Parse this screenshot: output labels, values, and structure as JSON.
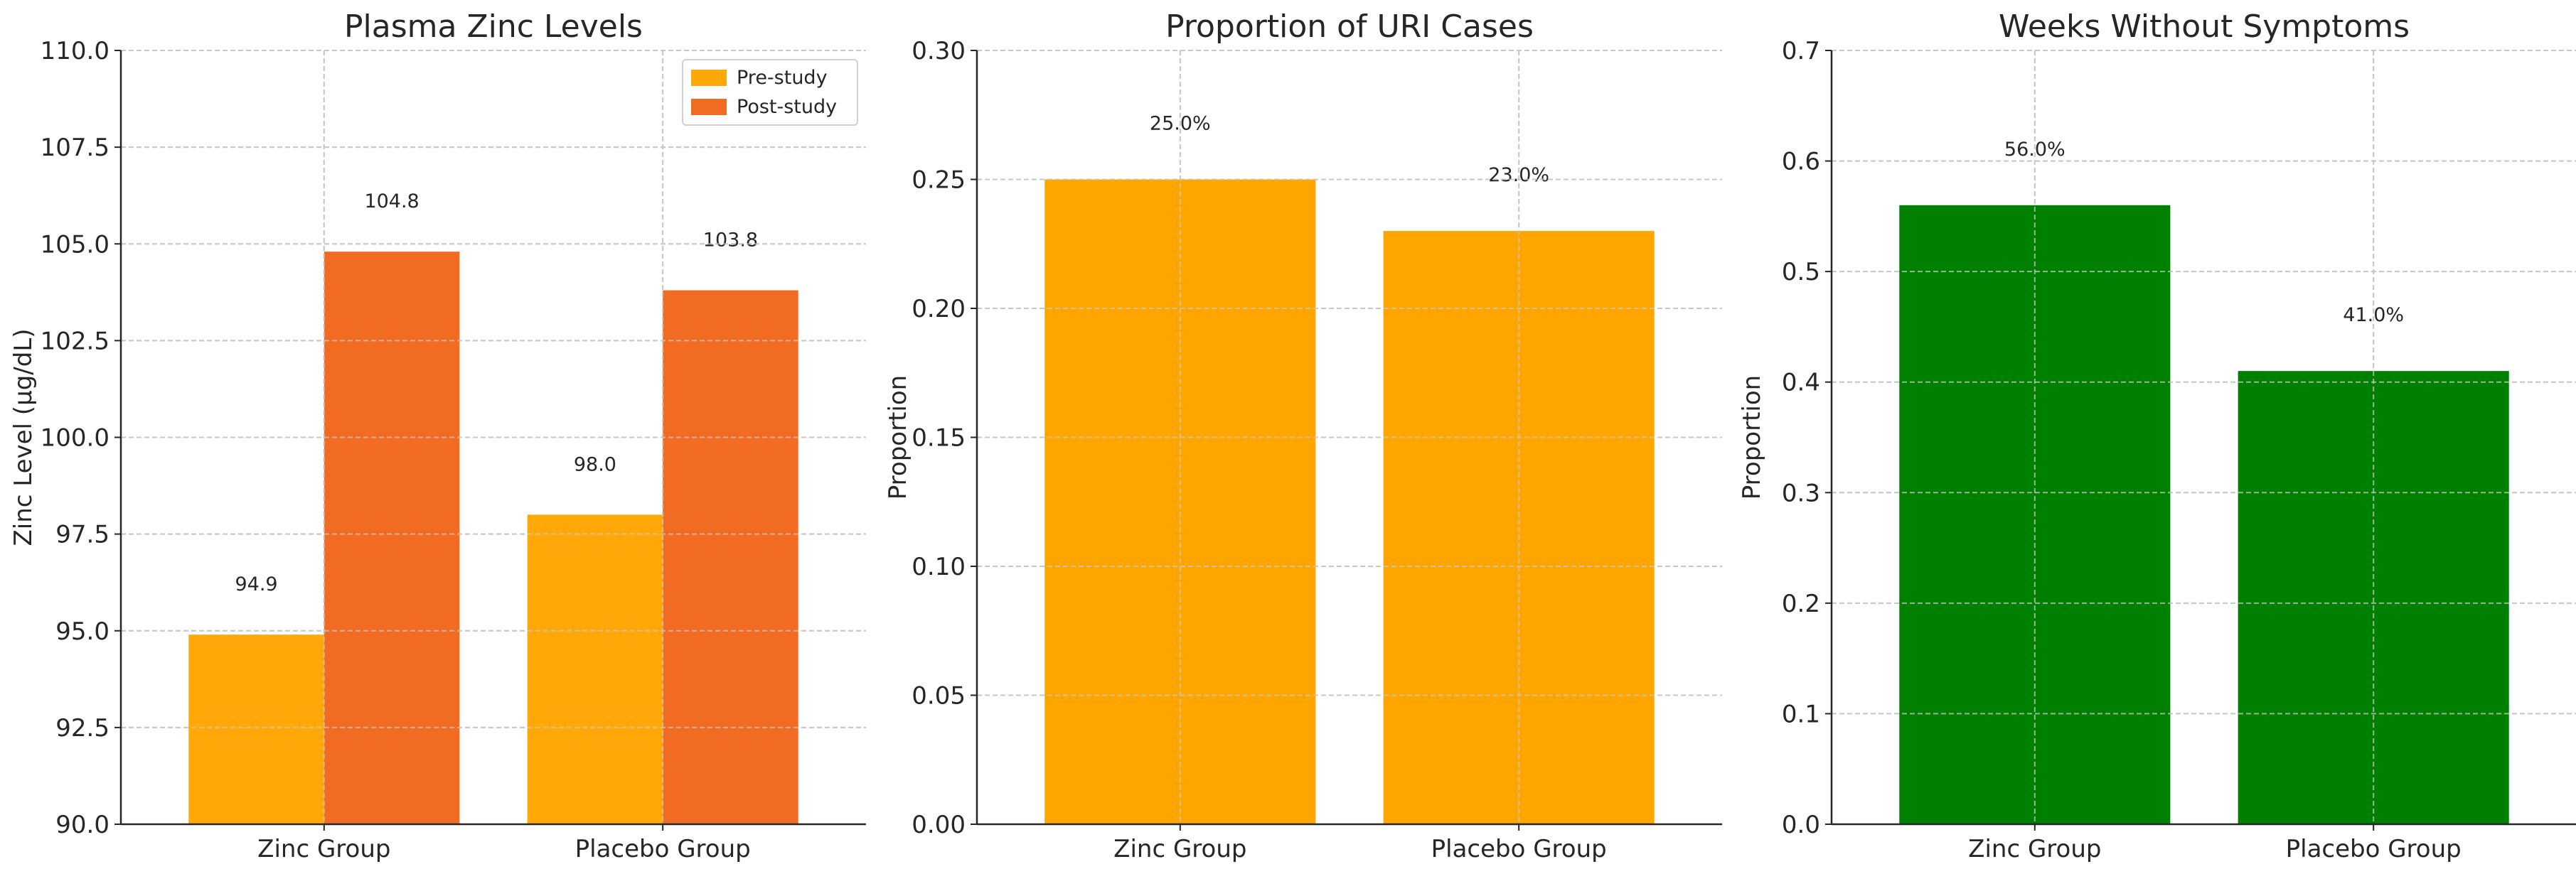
{
  "colors": {
    "pre_study": "#FFA808",
    "post_study": "#F26B23",
    "uri": "#FFA500",
    "weeks": "#008000",
    "grid": "#c8c8c8",
    "axis": "#262626"
  },
  "chart_data": [
    {
      "type": "bar",
      "title": "Plasma Zinc Levels",
      "xlabel": "",
      "ylabel": "Zinc Level (μg/dL)",
      "categories": [
        "Zinc Group",
        "Placebo Group"
      ],
      "series": [
        {
          "name": "Pre-study",
          "values": [
            94.9,
            98.0
          ],
          "labels": [
            "94.9",
            "98.0"
          ],
          "color": "#FFA808"
        },
        {
          "name": "Post-study",
          "values": [
            104.8,
            103.8
          ],
          "labels": [
            "104.8",
            "103.8"
          ],
          "color": "#F26B23"
        }
      ],
      "ylim": [
        90,
        110
      ],
      "yticks": [
        90.0,
        92.5,
        95.0,
        97.5,
        100.0,
        102.5,
        105.0,
        107.5,
        110.0
      ],
      "ytick_labels": [
        "90.0",
        "92.5",
        "95.0",
        "97.5",
        "100.0",
        "102.5",
        "105.0",
        "107.5",
        "110.0"
      ],
      "grid": true,
      "legend": "top-right"
    },
    {
      "type": "bar",
      "title": "Proportion of URI Cases",
      "xlabel": "",
      "ylabel": "Proportion",
      "categories": [
        "Zinc Group",
        "Placebo Group"
      ],
      "series": [
        {
          "values": [
            0.25,
            0.23
          ],
          "labels": [
            "25.0%",
            "23.0%"
          ],
          "color": "#FFA500"
        }
      ],
      "ylim": [
        0,
        0.3
      ],
      "yticks": [
        0,
        0.05,
        0.1,
        0.15,
        0.2,
        0.25,
        0.3
      ],
      "ytick_labels": [
        "0.00",
        "0.05",
        "0.10",
        "0.15",
        "0.20",
        "0.25",
        "0.30"
      ],
      "grid": true
    },
    {
      "type": "bar",
      "title": "Weeks Without Symptoms",
      "xlabel": "",
      "ylabel": "Proportion",
      "categories": [
        "Zinc Group",
        "Placebo Group"
      ],
      "series": [
        {
          "values": [
            0.56,
            0.41
          ],
          "labels": [
            "56.0%",
            "41.0%"
          ],
          "color": "#008000"
        }
      ],
      "ylim": [
        0,
        0.7
      ],
      "yticks": [
        0,
        0.1,
        0.2,
        0.3,
        0.4,
        0.5,
        0.6,
        0.7
      ],
      "ytick_labels": [
        "0.0",
        "0.1",
        "0.2",
        "0.3",
        "0.4",
        "0.5",
        "0.6",
        "0.7"
      ],
      "grid": true
    }
  ]
}
